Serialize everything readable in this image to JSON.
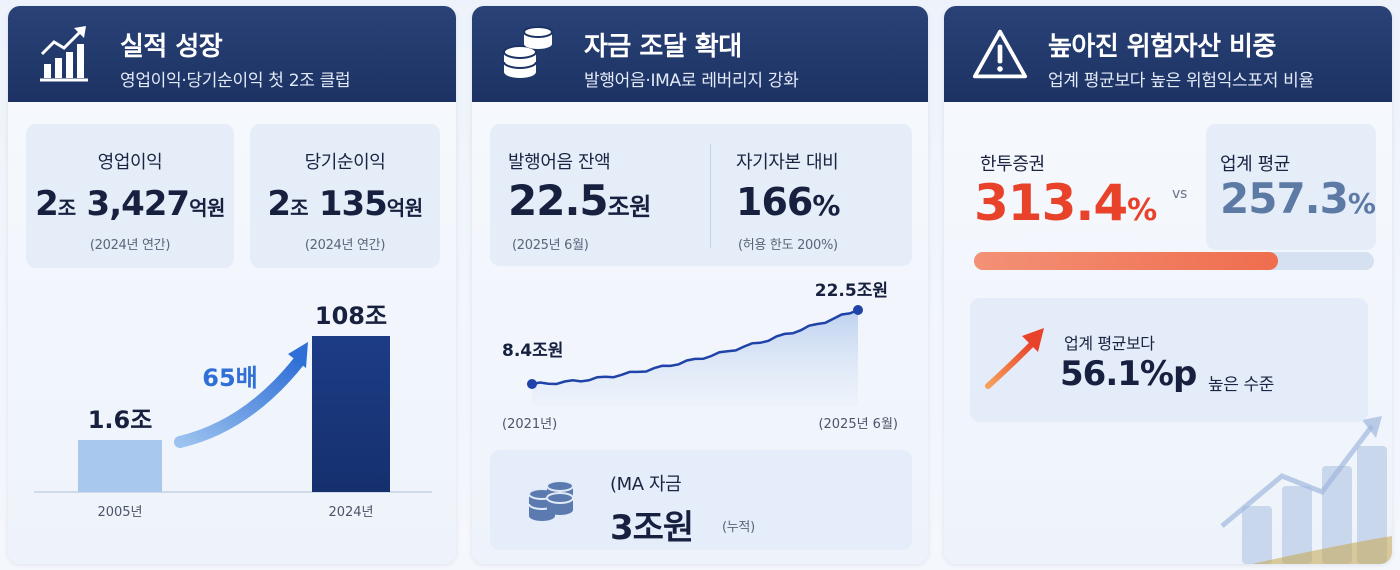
{
  "panel1": {
    "title": "실적 성장",
    "subtitle": "영업이익·당기순이익 첫 2조 클럽",
    "icon": "chart-growth-icon",
    "operating_profit": {
      "label": "영업이익",
      "n1": "2",
      "u1": "조",
      "n2": "3,427",
      "u2": "억원",
      "note": "(2024년 연간)"
    },
    "net_income": {
      "label": "당기순이익",
      "n1": "2",
      "u1": "조",
      "n2": "135",
      "u2": "억원",
      "note": "(2024년 연간)"
    },
    "growth": {
      "multiplier": "65배",
      "arrow_color": "#2f6fd6"
    },
    "chart_data": {
      "type": "bar",
      "categories": [
        "2005년",
        "2024년"
      ],
      "values": [
        1.6,
        108
      ],
      "value_labels": [
        "1.6조",
        "108조"
      ],
      "colors": [
        "#a9c8ee",
        "#1c3c86"
      ]
    }
  },
  "panel2": {
    "title": "자금 조달 확대",
    "subtitle": "발행어음·IMA로 레버리지 강화",
    "icon": "coin-stack-icon",
    "balance": {
      "label": "발행어음 잔액",
      "value": "22.5",
      "unit": "조원",
      "note": "(2025년 6월)"
    },
    "ratio": {
      "label": "자기자본 대비",
      "value": "166",
      "unit": "%",
      "note": "(허용 한도 200%)"
    },
    "chart_data": {
      "type": "area",
      "x": [
        "(2021년)",
        "(2025년 6월)"
      ],
      "start_label": "8.4조원",
      "end_label": "22.5조원",
      "start_value": 8.4,
      "end_value": 22.5,
      "color": "#1f43a8"
    },
    "ima": {
      "label": "(MA 자금",
      "value": "3조원",
      "note": "(누적)"
    }
  },
  "panel3": {
    "title": "높아진 위험자산 비중",
    "subtitle": "업계 평균보다 높은 위험익스포저 비율",
    "icon": "warning-icon",
    "company": {
      "label": "한투증권",
      "value": "313.4",
      "unit": "%",
      "color": "#e8432a"
    },
    "vs": "vs",
    "industry": {
      "label": "업계 평균",
      "value": "257.3",
      "unit": "%",
      "color": "#5d7aa5"
    },
    "bar_fraction": 0.76,
    "diff": {
      "label": "업계 평균보다",
      "value": "56.1%p",
      "suffix": "높은 수준"
    }
  }
}
